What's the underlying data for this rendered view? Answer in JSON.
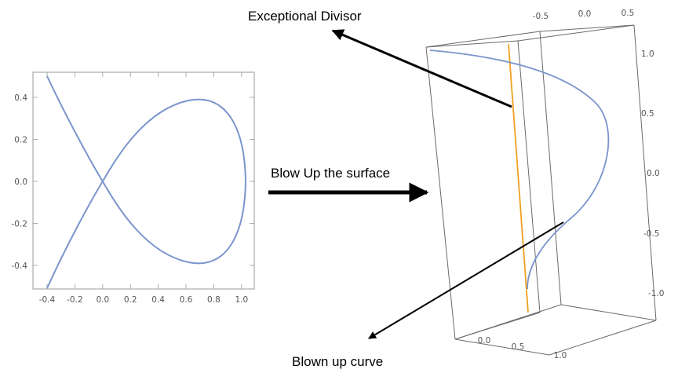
{
  "annotations": {
    "exceptional_divisor": "Exceptional Divisor",
    "blow_up": "Blow Up the surface",
    "blown_up_curve": "Blown up curve"
  },
  "plot2d": {
    "x_ticks": [
      "-0.4",
      "-0.2",
      "0.0",
      "0.2",
      "0.4",
      "0.6",
      "0.8",
      "1.0"
    ],
    "y_ticks": [
      "0.4",
      "0.2",
      "0.0",
      "-0.2",
      "-0.4"
    ],
    "curve_color": "#7a95cc"
  },
  "plot3d": {
    "top_ticks": [
      "-0.5",
      "0.0",
      "0.5"
    ],
    "right_ticks": [
      "1.0",
      "0.5",
      "0.0",
      "-0.5",
      "-1.0"
    ],
    "bottom_ticks": [
      "0.0",
      "0.5",
      "1.0"
    ],
    "curve_color": "#7a95cc",
    "divisor_color": "#f0a020"
  }
}
